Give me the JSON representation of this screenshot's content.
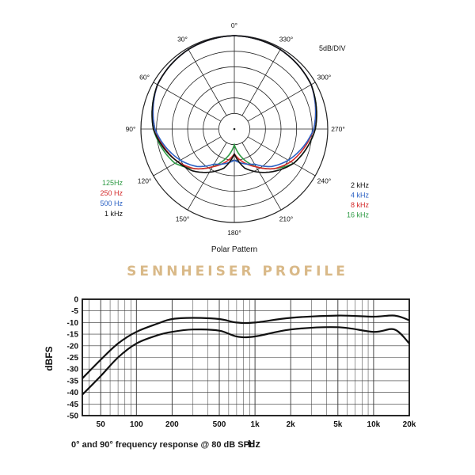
{
  "product_title": "SENNHEISER PROFILE",
  "freq_caption": "0° and 90° frequency response @ 80 dB SPL",
  "chart_data": [
    {
      "type": "polar",
      "title": "Polar Pattern",
      "scale_label": "5dB/DIV",
      "angle_labels": [
        "0°",
        "30°",
        "60°",
        "90°",
        "120°",
        "150°",
        "180°",
        "210°",
        "240°",
        "270°",
        "300°",
        "330°"
      ],
      "rings": 6,
      "legend_left": [
        "125Hz",
        "250 Hz",
        "500 Hz",
        "1 kHz"
      ],
      "legend_right": [
        "2 kHz",
        "4 kHz",
        "8 kHz",
        "16 kHz"
      ],
      "colors": {
        "125Hz": "#2e9a44",
        "250 Hz": "#d42a2a",
        "500 Hz": "#2c62c4",
        "1 kHz": "#111111",
        "2 kHz": "#111111",
        "4 kHz": "#2c62c4",
        "8 kHz": "#d42a2a",
        "16 kHz": "#2e9a44"
      },
      "series": [
        {
          "name": "125Hz",
          "angles": [
            0,
            30,
            60,
            90,
            120,
            135,
            150,
            180,
            210,
            225,
            240,
            270,
            300,
            330,
            360
          ],
          "values": [
            0,
            -0.5,
            -1.5,
            -4,
            -8,
            -12,
            -16,
            -25,
            -16,
            -12,
            -8,
            -4,
            -1.5,
            -0.5,
            0
          ]
        },
        {
          "name": "250 Hz",
          "angles": [
            0,
            30,
            60,
            90,
            120,
            135,
            150,
            180,
            210,
            225,
            240,
            270,
            300,
            330,
            360
          ],
          "values": [
            0,
            -0.5,
            -1.5,
            -4.5,
            -9,
            -12,
            -16,
            -22,
            -16,
            -12,
            -9,
            -4.5,
            -1.5,
            -0.5,
            0
          ]
        },
        {
          "name": "500 Hz",
          "angles": [
            0,
            30,
            60,
            90,
            120,
            135,
            150,
            180,
            210,
            225,
            240,
            270,
            300,
            330,
            360
          ],
          "values": [
            0,
            -0.5,
            -1.5,
            -4.5,
            -10,
            -13,
            -17,
            -20,
            -17,
            -13,
            -10,
            -4.5,
            -1.5,
            -0.5,
            0
          ]
        },
        {
          "name": "1 kHz",
          "angles": [
            0,
            30,
            60,
            90,
            120,
            135,
            150,
            165,
            180,
            195,
            210,
            240,
            270,
            300,
            330,
            360
          ],
          "values": [
            0,
            -0.5,
            -1.5,
            -4,
            -9,
            -11,
            -14,
            -17,
            -22,
            -17,
            -14,
            -8,
            -4,
            -1.5,
            -0.5,
            0
          ]
        }
      ]
    },
    {
      "type": "line",
      "x_scale": "log",
      "xlabel": "Hz",
      "ylabel": "dBFS",
      "xlim": [
        35,
        20000
      ],
      "ylim": [
        -50,
        0
      ],
      "x_ticks": [
        50,
        100,
        200,
        500,
        1000,
        2000,
        5000,
        10000,
        20000
      ],
      "x_tick_labels": [
        "50",
        "100",
        "200",
        "500",
        "1k",
        "2k",
        "5k",
        "10k",
        "20k"
      ],
      "y_ticks": [
        0,
        -5,
        -10,
        -15,
        -20,
        -25,
        -30,
        -35,
        -40,
        -45,
        -50
      ],
      "grid": true,
      "series": [
        {
          "x": [
            35,
            50,
            70,
            100,
            150,
            200,
            300,
            500,
            700,
            1000,
            2000,
            5000,
            10000,
            15000,
            20000
          ],
          "y": [
            -34,
            -26,
            -19,
            -14,
            -10.5,
            -8.5,
            -8,
            -8.5,
            -10,
            -10,
            -8,
            -7,
            -7.5,
            -7,
            -9
          ]
        },
        {
          "x": [
            35,
            50,
            70,
            100,
            150,
            200,
            300,
            500,
            700,
            1000,
            2000,
            5000,
            10000,
            15000,
            20000
          ],
          "y": [
            -41,
            -33,
            -25,
            -19,
            -15.5,
            -14,
            -13,
            -13.5,
            -16,
            -16,
            -13,
            -12,
            -14,
            -13,
            -19
          ]
        }
      ]
    }
  ]
}
